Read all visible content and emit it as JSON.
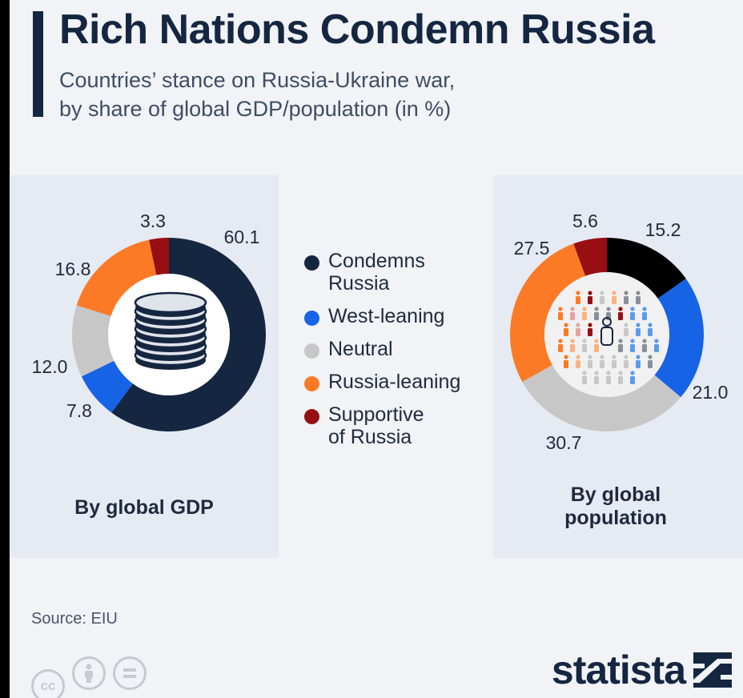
{
  "title": "Rich Nations Condemn Russia",
  "subtitle_line1": "Countries’ stance on Russia-Ukraine war,",
  "subtitle_line2": "by share of global GDP/population (in %)",
  "legend": [
    {
      "line1": "Condemns",
      "line2": "Russia",
      "color": "#152641"
    },
    {
      "line1": "West-leaning",
      "line2": "",
      "color": "#1763e6"
    },
    {
      "line1": "Neutral",
      "line2": "",
      "color": "#c7c7c7"
    },
    {
      "line1": "Russia-leaning",
      "line2": "",
      "color": "#fc7a26"
    },
    {
      "line1": "Supportive",
      "line2": "of Russia",
      "color": "#970f12"
    }
  ],
  "gdp_caption": "By global GDP",
  "pop_caption_line1": "By global",
  "pop_caption_line2": "population",
  "source": "Source: EIU",
  "brand": "statista",
  "chart_data": [
    {
      "type": "pie",
      "title": "By global GDP",
      "categories": [
        "Condemns Russia",
        "West-leaning",
        "Neutral",
        "Russia-leaning",
        "Supportive of Russia"
      ],
      "values": [
        60.1,
        7.8,
        12.0,
        16.8,
        3.3
      ],
      "colors": [
        "#152641",
        "#1763e6",
        "#c7c7c7",
        "#fc7a26",
        "#970f12"
      ]
    },
    {
      "type": "pie",
      "title": "By global population",
      "categories": [
        "Condemns Russia",
        "West-leaning",
        "Neutral",
        "Russia-leaning",
        "Supportive of Russia"
      ],
      "values": [
        15.2,
        21.0,
        30.7,
        27.5,
        5.6
      ],
      "colors": [
        "#000000",
        "#1763e6",
        "#c7c7c7",
        "#fc7a26",
        "#970f12"
      ]
    }
  ]
}
